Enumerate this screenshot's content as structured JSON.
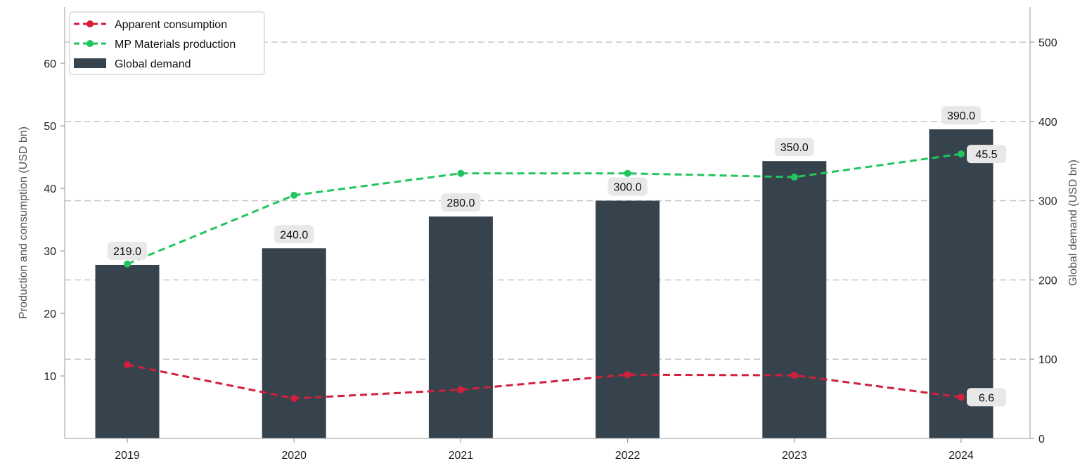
{
  "chart_data": {
    "type": "bar",
    "categories": [
      "2019",
      "2020",
      "2021",
      "2022",
      "2023",
      "2024"
    ],
    "series": [
      {
        "name": "Global demand",
        "type": "bar",
        "axis": "right",
        "color": "#36434d",
        "values": [
          219.0,
          240.0,
          280.0,
          300.0,
          350.0,
          390.0
        ]
      },
      {
        "name": "Apparent consumption",
        "type": "line",
        "axis": "left",
        "color": "#d21f3c",
        "values": [
          11.8,
          6.4,
          7.8,
          10.2,
          10.1,
          6.6
        ]
      },
      {
        "name": "MP Materials production",
        "type": "line",
        "axis": "left",
        "color": "#22c55e",
        "values": [
          27.9,
          38.9,
          42.4,
          42.4,
          41.8,
          45.5
        ]
      }
    ],
    "bar_labels": [
      "219.0",
      "240.0",
      "280.0",
      "300.0",
      "350.0",
      "390.0"
    ],
    "end_labels": {
      "Apparent consumption": "6.6",
      "MP Materials production": "45.5"
    },
    "ylabel_left": "Production and consumption (USD bn)",
    "ylabel_right": "Global demand (USD bn)",
    "ylim_left": [
      0,
      69
    ],
    "ylim_right": [
      0,
      500
    ],
    "yticks_left": [
      10,
      20,
      30,
      40,
      50,
      60
    ],
    "yticks_right": [
      0,
      100,
      200,
      300,
      400,
      500
    ],
    "grid": "horizontal dashed (right axis)",
    "legend_position": "top-left"
  }
}
